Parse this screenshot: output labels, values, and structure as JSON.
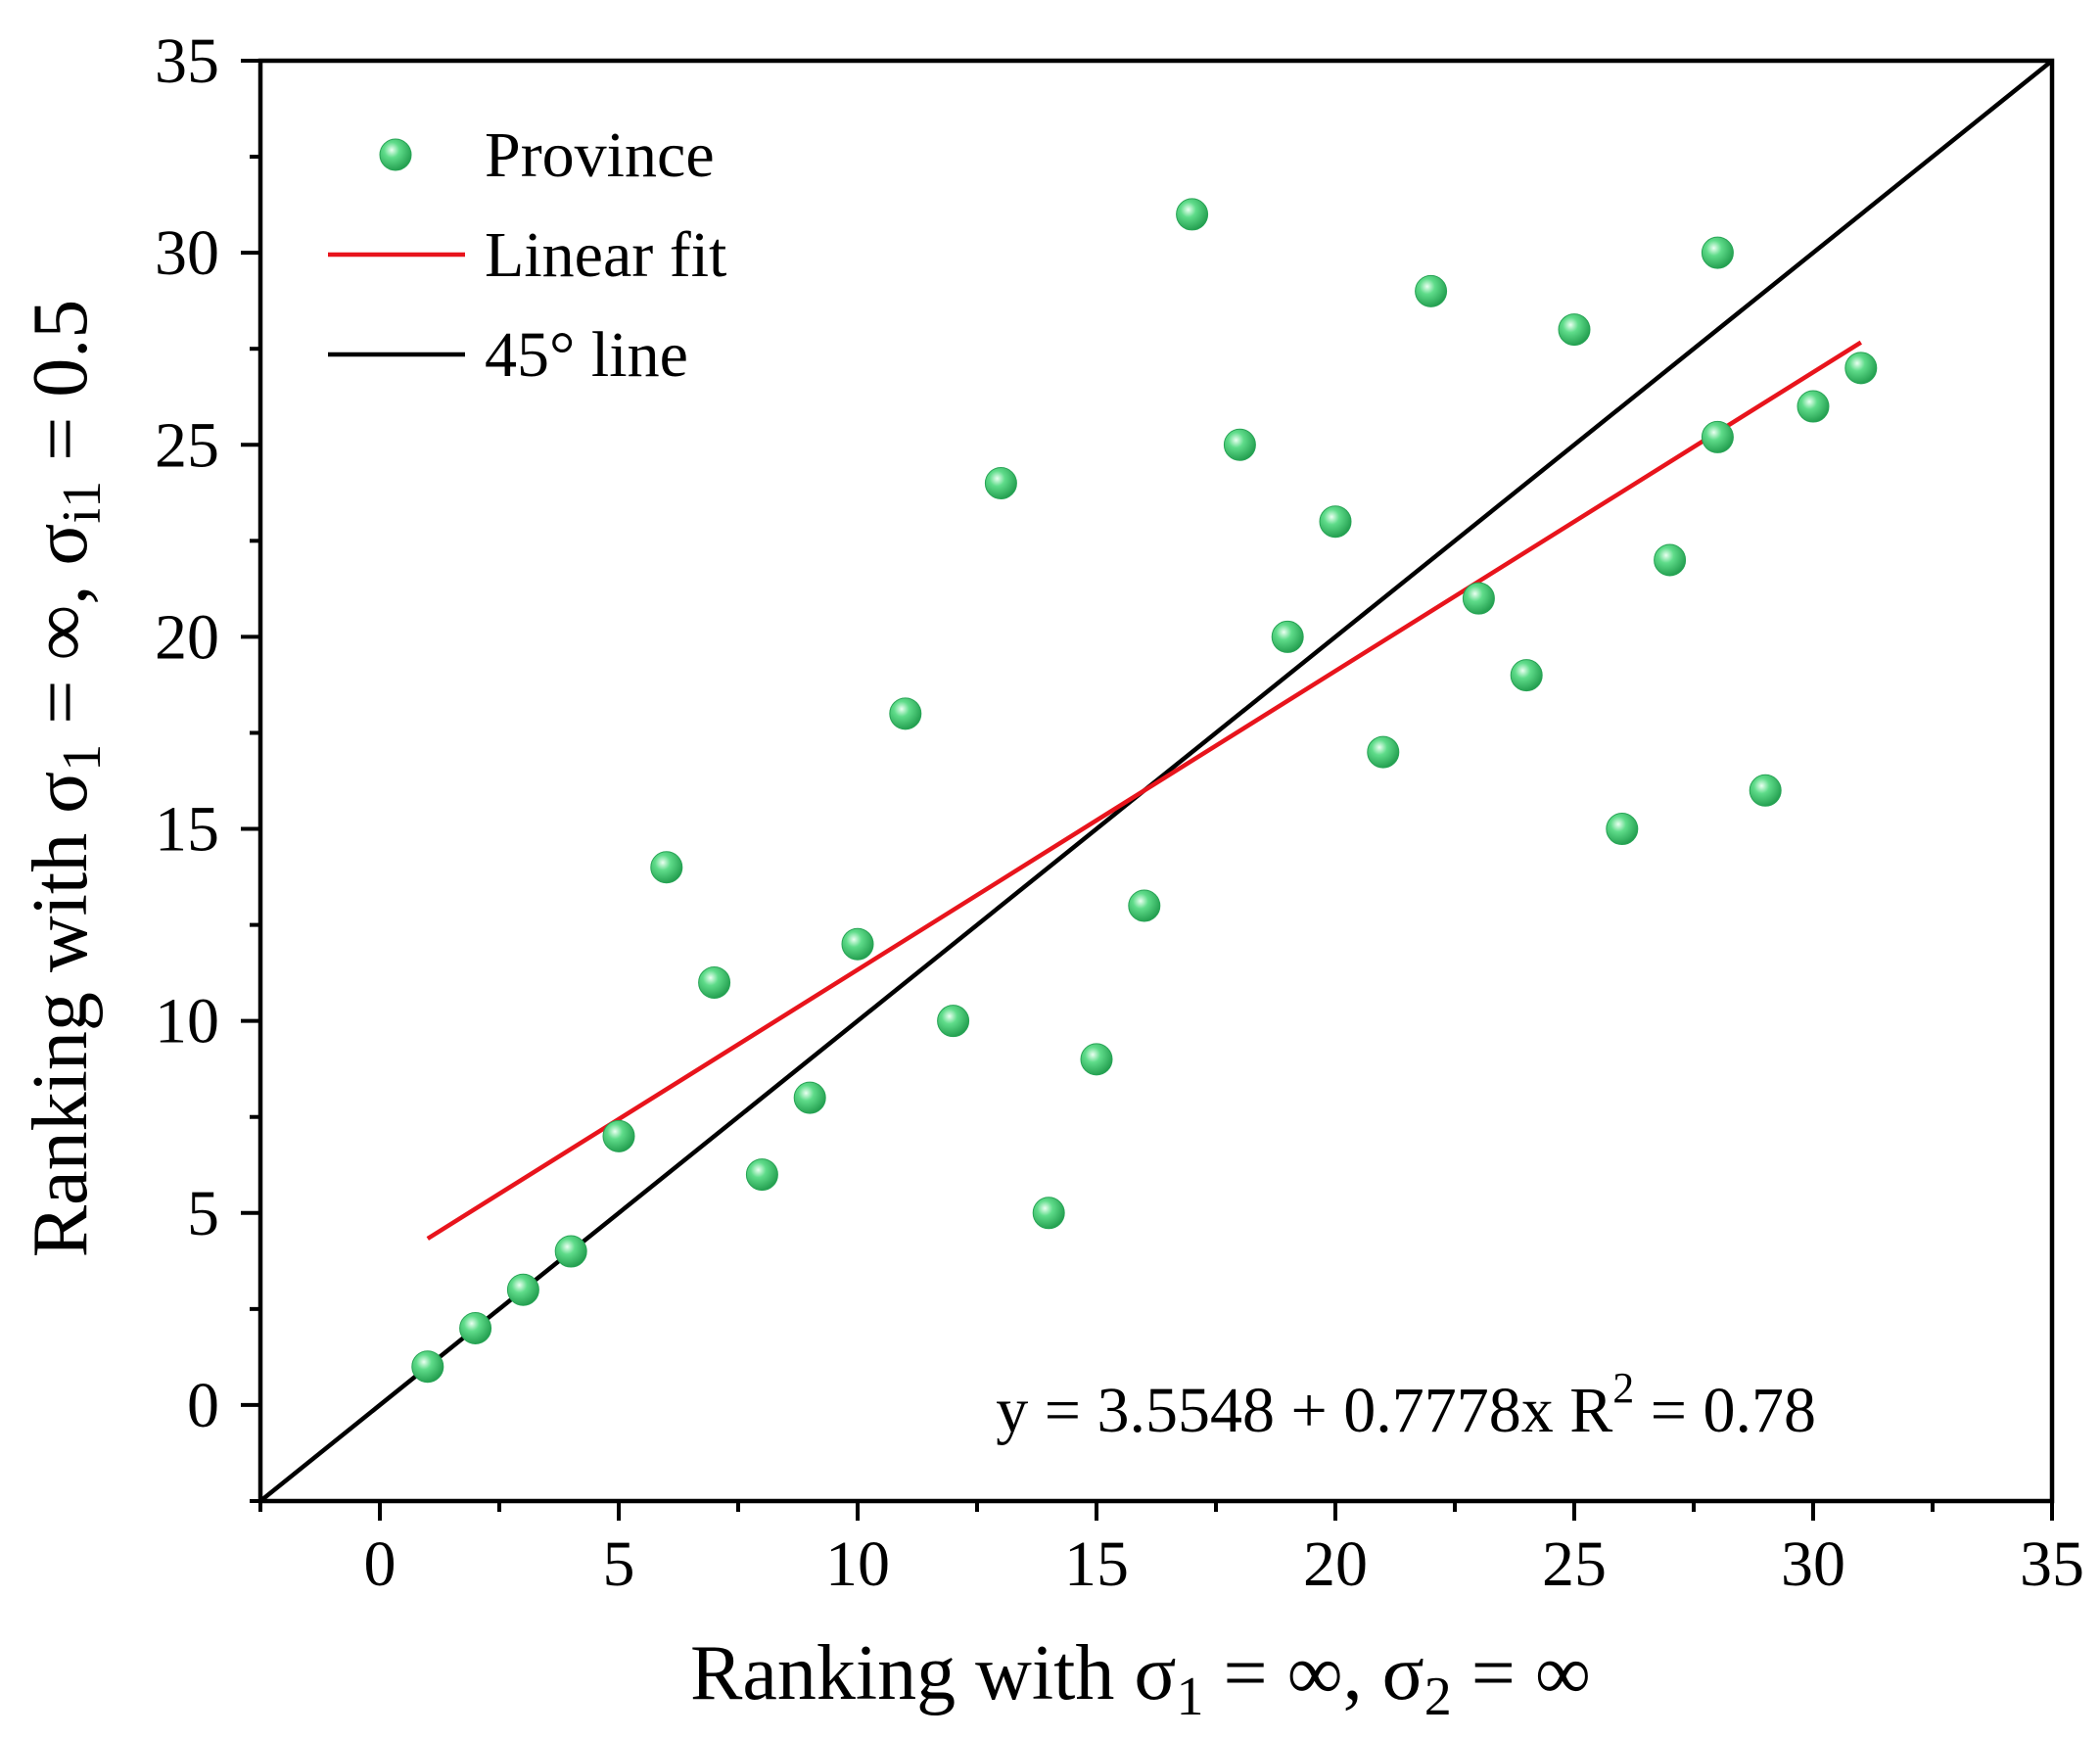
{
  "chart_data": {
    "type": "scatter",
    "title": "",
    "xlabel": {
      "main": "Ranking with σ",
      "s1": "1",
      "mid": " = ∞, σ",
      "s2": "2",
      "end": " = ∞"
    },
    "ylabel": {
      "main": "Ranking with σ",
      "s1": "1",
      "mid": " = ∞, σ",
      "s2": "i1",
      "end": " = 0.5"
    },
    "xlim": [
      -2.5,
      35
    ],
    "ylim": [
      -2.5,
      35
    ],
    "xticks": [
      0,
      5,
      10,
      15,
      20,
      25,
      30,
      35
    ],
    "yticks": [
      0,
      5,
      10,
      15,
      20,
      25,
      30,
      35
    ],
    "legend_position": "top-left",
    "legend": [
      {
        "label": "Province",
        "kind": "marker",
        "color": "#3ec46d"
      },
      {
        "label": "Linear fit",
        "kind": "line",
        "color": "#e8141c"
      },
      {
        "label": "45° line",
        "kind": "line",
        "color": "#000000"
      }
    ],
    "series": [
      {
        "name": "Province",
        "color": "#3ec46d",
        "x": [
          1,
          2,
          3,
          4,
          5,
          6,
          7,
          8,
          9,
          10,
          11,
          12,
          13,
          14,
          15,
          16,
          17,
          18,
          19,
          20,
          21,
          22,
          23,
          24,
          25,
          26,
          27,
          28,
          28,
          29,
          30,
          31
        ],
        "y": [
          1,
          2,
          3,
          4,
          7,
          14,
          11,
          6,
          8,
          12,
          18,
          10,
          24,
          5,
          9,
          13,
          31,
          25,
          20,
          23,
          17,
          29,
          21,
          19,
          28,
          15,
          22,
          30,
          25.2,
          16,
          26,
          27
        ]
      }
    ],
    "fit_line": {
      "name": "Linear fit",
      "color": "#e8141c",
      "intercept": 3.5548,
      "slope": 0.7778,
      "x_range": [
        1,
        31
      ]
    },
    "reference_line": {
      "name": "45° line",
      "color": "#000000",
      "x_range": [
        -2.5,
        35
      ]
    },
    "annotation": {
      "text_main": "y = 3.5548 + 0.7778x   R",
      "sup": "2",
      "text_end": " = 0.78",
      "position": "bottom-right"
    }
  }
}
